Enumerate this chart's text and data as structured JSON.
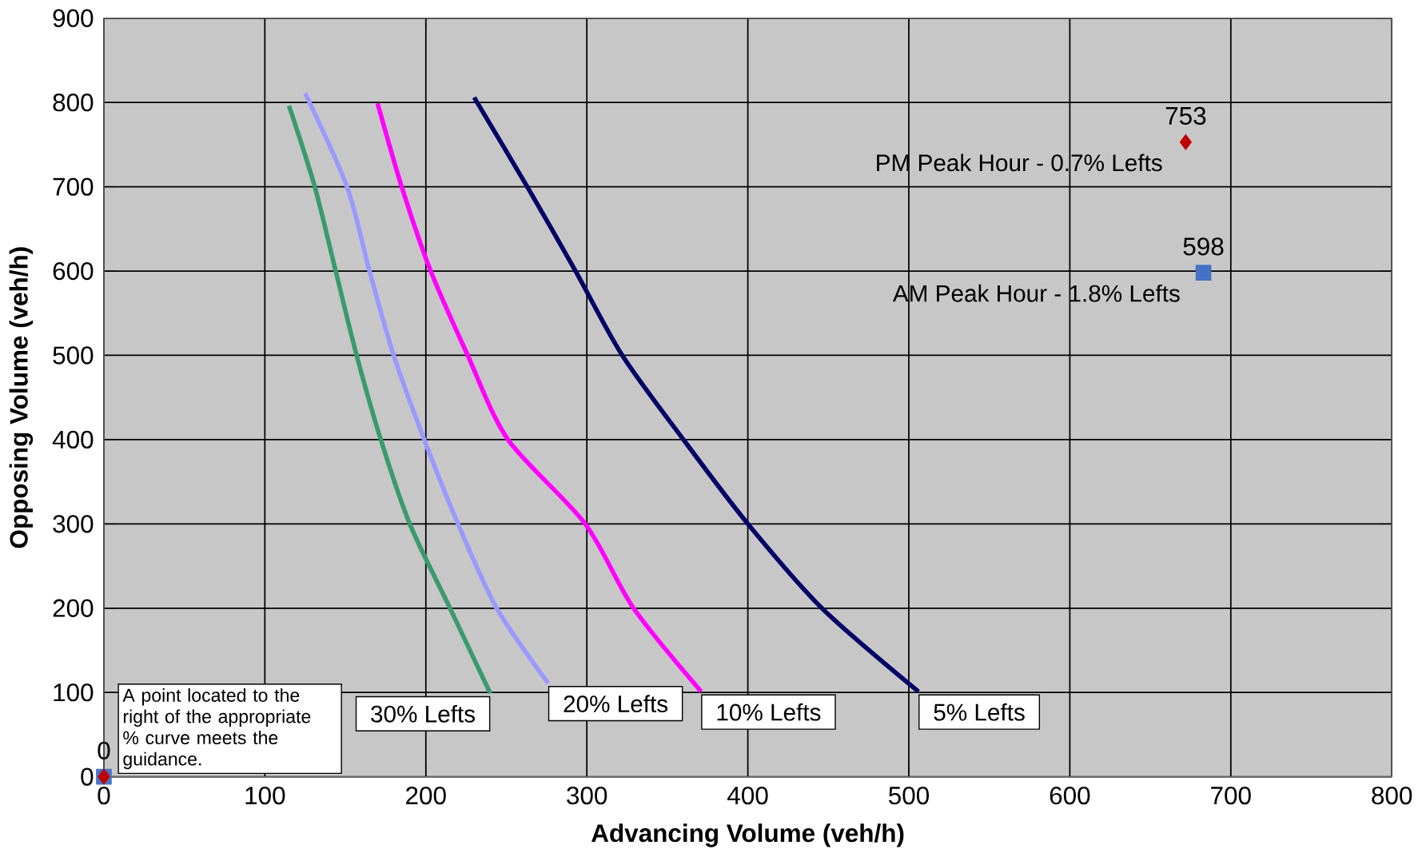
{
  "chart_data": {
    "type": "line",
    "xlabel": "Advancing Volume (veh/h)",
    "ylabel": "Opposing Volume (veh/h)",
    "xlim": [
      0,
      800
    ],
    "ylim": [
      0,
      900
    ],
    "xticks": [
      0,
      100,
      200,
      300,
      400,
      500,
      600,
      700,
      800
    ],
    "yticks": [
      0,
      100,
      200,
      300,
      400,
      500,
      600,
      700,
      800,
      900
    ],
    "grid": true,
    "marker": "none",
    "series": [
      {
        "name": "30% Lefts",
        "color": "#3a9a6e",
        "x": [
          115,
          131,
          144,
          157,
          172,
          190,
          215,
          240
        ],
        "values": [
          796,
          700,
          600,
          500,
          400,
          300,
          200,
          99
        ]
      },
      {
        "name": "20% Lefts",
        "color": "#9999ff",
        "x": [
          125,
          151,
          165,
          180,
          199,
          220,
          244,
          276
        ],
        "values": [
          811,
          700,
          600,
          500,
          400,
          300,
          200,
          111
        ]
      },
      {
        "name": "10% Lefts",
        "color": "#ff00ff",
        "x": [
          170,
          185,
          203,
          226,
          251,
          299,
          329,
          371
        ],
        "values": [
          799,
          700,
          600,
          500,
          400,
          300,
          200,
          101
        ]
      },
      {
        "name": "5% Lefts",
        "color": "#000066",
        "x": [
          230,
          263,
          293,
          322,
          360,
          400,
          446,
          506
        ],
        "values": [
          806,
          700,
          600,
          500,
          400,
          300,
          200,
          101
        ]
      },
      {
        "name": "PM Peak Hour - 0.7% Lefts",
        "type": "scatter",
        "marker": "diamond",
        "color": "#c00000",
        "x": [
          0,
          672
        ],
        "values": [
          0,
          753
        ],
        "value_labels": [
          "0",
          "753"
        ]
      },
      {
        "name": "AM Peak Hour - 1.8% Lefts",
        "type": "scatter",
        "marker": "square",
        "color": "#4472c4",
        "x": [
          0,
          683
        ],
        "values": [
          0,
          598
        ],
        "value_labels": [
          null,
          "598"
        ]
      }
    ],
    "annotations": [
      "A point located to the right of the appropriate % curve meets the guidance."
    ]
  }
}
